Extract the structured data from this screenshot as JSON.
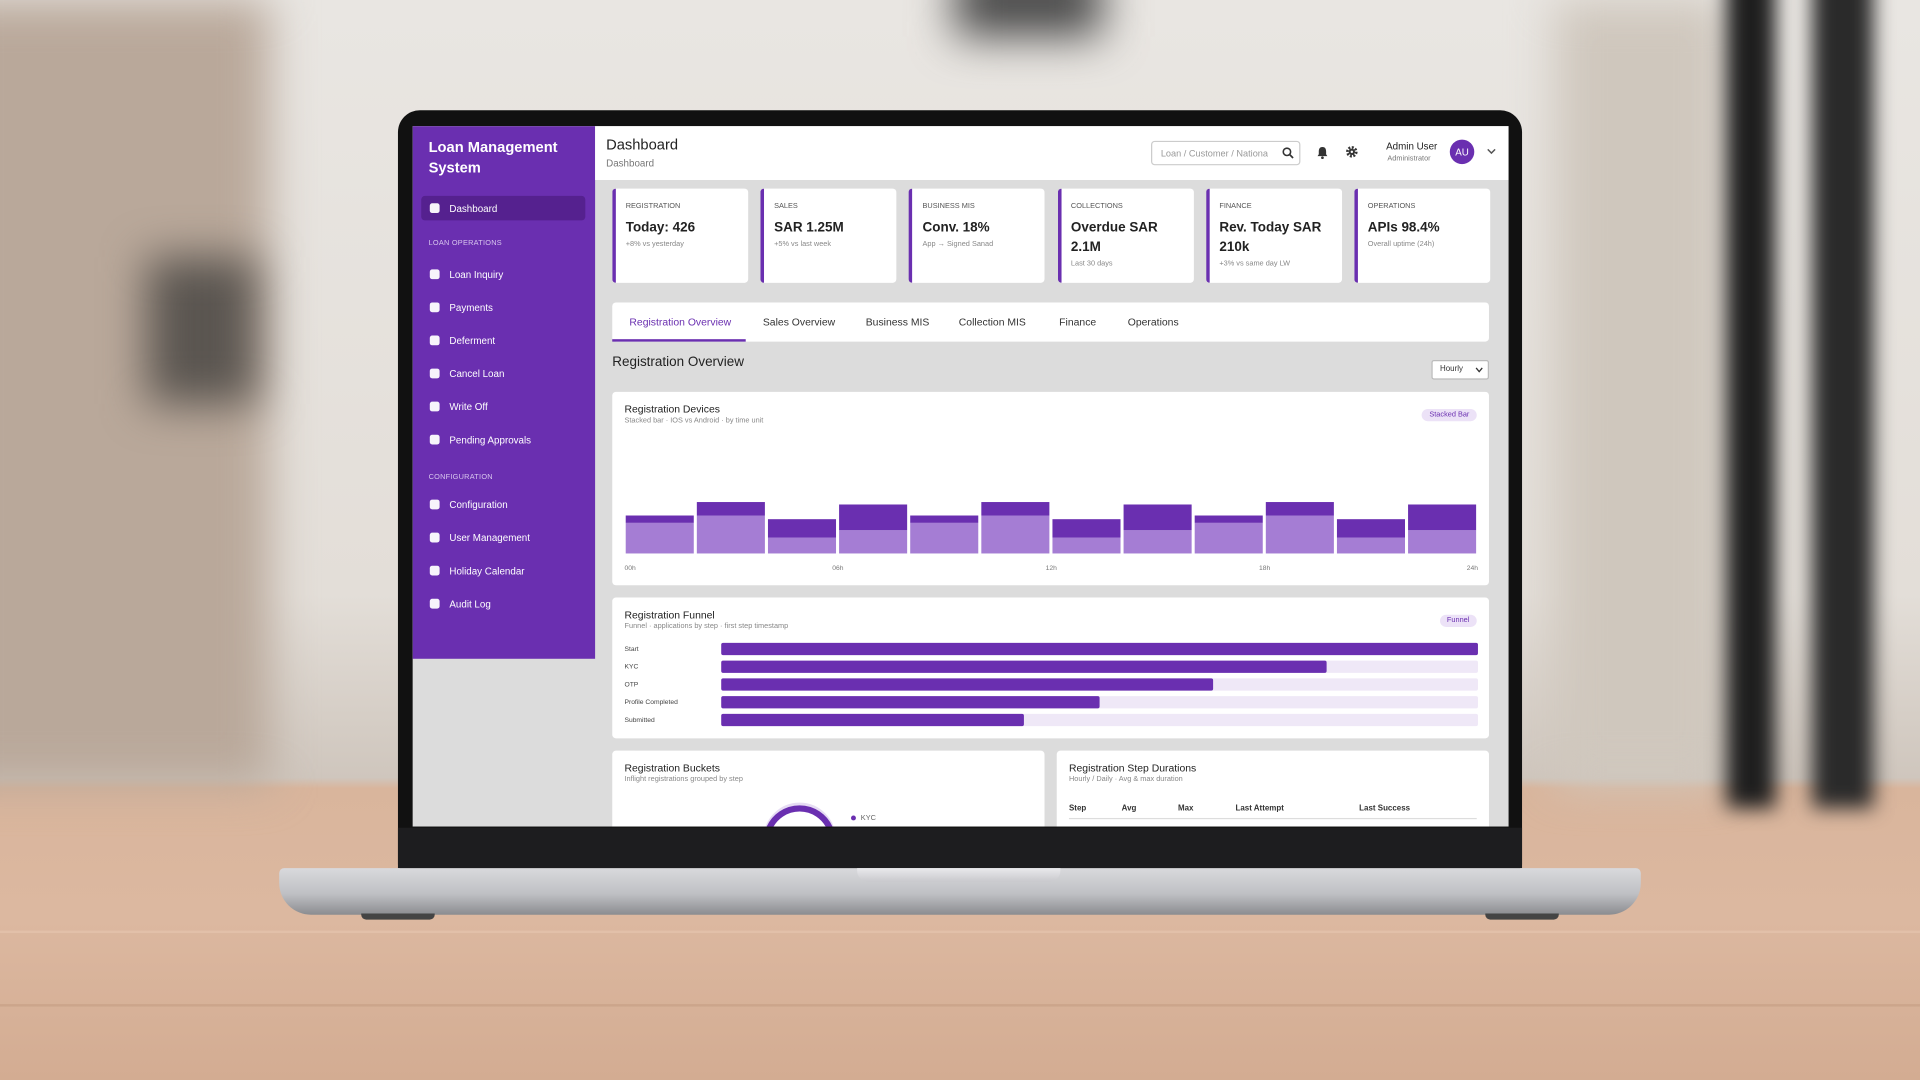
{
  "sidebar": {
    "title": "Loan Management System",
    "active": "Dashboard",
    "sections": [
      {
        "heading": "LOAN OPERATIONS",
        "items": [
          "Loan Inquiry",
          "Payments",
          "Deferment",
          "Cancel Loan",
          "Write Off",
          "Pending Approvals"
        ]
      },
      {
        "heading": "CONFIGURATION",
        "items": [
          "Configuration",
          "User Management",
          "Holiday Calendar",
          "Audit Log"
        ]
      }
    ]
  },
  "header": {
    "title": "Dashboard",
    "breadcrumb": "Dashboard",
    "search_placeholder": "Loan / Customer / Nationa",
    "user": {
      "name": "Admin User",
      "role": "Administrator",
      "initials": "AU"
    }
  },
  "kpis": [
    {
      "label": "REGISTRATION",
      "value": "Today: 426",
      "note": "+8% vs yesterday"
    },
    {
      "label": "SALES",
      "value": "SAR 1.25M",
      "note": "+5% vs last week"
    },
    {
      "label": "BUSINESS MIS",
      "value": "Conv. 18%",
      "note": "App → Signed Sanad"
    },
    {
      "label": "COLLECTIONS",
      "value": "Overdue SAR 2.1M",
      "note": "Last 30 days"
    },
    {
      "label": "FINANCE",
      "value": "Rev. Today SAR 210k",
      "note": "+3% vs same day LW"
    },
    {
      "label": "OPERATIONS",
      "value": "APIs 98.4%",
      "note": "Overall uptime (24h)"
    }
  ],
  "tabs": [
    "Registration Overview",
    "Sales Overview",
    "Business MIS",
    "Collection MIS",
    "Finance",
    "Operations"
  ],
  "section_title": "Registration Overview",
  "interval": "Hourly",
  "chart_data": [
    {
      "type": "bar",
      "stacked": true,
      "title": "Registration Devices",
      "subtitle": "Stacked bar · IOS vs Android · by time unit",
      "badge": "Stacked Bar",
      "categories": [
        null,
        null,
        null,
        null,
        null,
        null,
        null,
        null,
        null,
        null,
        null,
        null
      ],
      "xticks": [
        "00h",
        "06h",
        "12h",
        "18h",
        "24h"
      ],
      "ylim": [
        0,
        100
      ],
      "series": [
        {
          "color": "#a57dd4",
          "values": [
            25,
            31,
            13,
            19,
            25,
            31,
            13,
            19,
            25,
            31,
            13,
            19
          ]
        },
        {
          "color": "#6a2fb0",
          "values": [
            6,
            11,
            15,
            21,
            6,
            11,
            15,
            21,
            6,
            11,
            15,
            21
          ]
        }
      ]
    },
    {
      "type": "funnel",
      "title": "Registration Funnel",
      "subtitle": "Funnel · applications by step · first step timestamp",
      "badge": "Funnel",
      "categories": [
        "Start",
        "KYC",
        "OTP",
        "Profile Completed",
        "Submitted"
      ],
      "values": [
        100,
        80,
        65,
        50,
        40
      ],
      "xlim": [
        0,
        100
      ],
      "color": "#6a2fb0"
    }
  ],
  "buckets": {
    "title": "Registration Buckets",
    "subtitle": "Inflight registrations grouped by step",
    "legend": [
      "KYC"
    ]
  },
  "durations": {
    "title": "Registration Step Durations",
    "subtitle": "Hourly / Daily · Avg & max duration",
    "columns": [
      "Step",
      "Avg",
      "Max",
      "Last Attempt",
      "Last Success"
    ]
  }
}
